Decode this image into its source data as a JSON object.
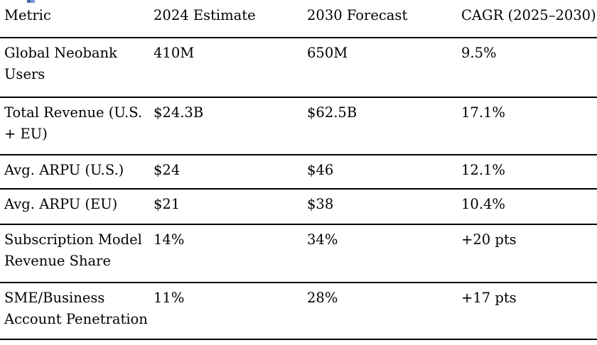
{
  "page": {
    "heading_fragment_color": "#4f81bd",
    "rule_color": "#000000",
    "background_color": "#ffffff"
  },
  "table": {
    "headers": [
      "Metric",
      "2024 Estimate",
      "2030 Forecast",
      "CAGR (2025–2030)"
    ],
    "rows": [
      [
        "Global Neobank Users",
        "410M",
        "650M",
        "9.5%"
      ],
      [
        "Total Revenue (U.S. + EU)",
        "$24.3B",
        "$62.5B",
        "17.1%"
      ],
      [
        "Avg. ARPU (U.S.)",
        "$24",
        "$46",
        "12.1%"
      ],
      [
        "Avg. ARPU (EU)",
        "$21",
        "$38",
        "10.4%"
      ],
      [
        "Subscription Model Revenue Share",
        "14%",
        "34%",
        "+20 pts"
      ],
      [
        "SME/Business Account Penetration",
        "11%",
        "28%",
        "+17 pts"
      ]
    ]
  }
}
